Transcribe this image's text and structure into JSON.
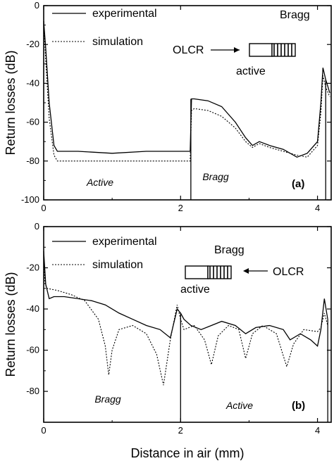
{
  "chart_data": [
    {
      "type": "line",
      "panel_label": "(a)",
      "xlim": [
        0,
        4.2
      ],
      "ylim": [
        -100,
        0
      ],
      "ylabel": "Return losses (dB)",
      "xticks": [
        "0",
        "2",
        "4"
      ],
      "xtick_values": [
        0,
        2,
        4
      ],
      "yticks": [
        "0",
        "-20",
        "-40",
        "-60",
        "-80",
        "-100"
      ],
      "ytick_values": [
        0,
        -20,
        -40,
        -60,
        -80,
        -100
      ],
      "legend": [
        "experimental",
        "simulation"
      ],
      "annotations": {
        "olcr": "OLCR",
        "bragg": "Bragg",
        "active": "active"
      },
      "region_labels": {
        "left": "Active",
        "right": "Bragg"
      },
      "series": [
        {
          "name": "experimental",
          "x": [
            0,
            0.03,
            0.08,
            0.15,
            0.2,
            0.5,
            1.0,
            1.5,
            2.0,
            2.14,
            2.16,
            2.2,
            2.4,
            2.6,
            2.8,
            2.95,
            3.05,
            3.15,
            3.3,
            3.5,
            3.7,
            3.85,
            4.0,
            4.05,
            4.08,
            4.12,
            4.18
          ],
          "y": [
            -8,
            -22,
            -50,
            -72,
            -75,
            -75,
            -76,
            -75,
            -75,
            -75,
            -48,
            -48,
            -49,
            -52,
            -60,
            -68,
            -72,
            -70,
            -72,
            -74,
            -78,
            -76,
            -70,
            -50,
            -32,
            -38,
            -45
          ]
        },
        {
          "name": "simulation",
          "x": [
            0,
            0.03,
            0.08,
            0.15,
            0.2,
            0.5,
            1.0,
            1.5,
            2.0,
            2.14,
            2.16,
            2.2,
            2.4,
            2.6,
            2.8,
            2.95,
            3.05,
            3.15,
            3.3,
            3.5,
            3.7,
            3.85,
            4.0,
            4.05,
            4.08,
            4.12,
            4.18
          ],
          "y": [
            -8,
            -28,
            -58,
            -77,
            -80,
            -80,
            -80,
            -80,
            -80,
            -80,
            -54,
            -53,
            -54,
            -57,
            -63,
            -70,
            -73,
            -71,
            -73,
            -75,
            -77,
            -78,
            -72,
            -55,
            -36,
            -42,
            -47
          ]
        }
      ]
    },
    {
      "type": "line",
      "panel_label": "(b)",
      "xlim": [
        0,
        4.2
      ],
      "ylim": [
        -95,
        0
      ],
      "xlabel": "Distance in air (mm)",
      "ylabel": "Return losses (dB)",
      "xticks": [
        "0",
        "2",
        "4"
      ],
      "xtick_values": [
        0,
        2,
        4
      ],
      "yticks": [
        "0",
        "-20",
        "-40",
        "-60",
        "-80"
      ],
      "ytick_values": [
        0,
        -20,
        -40,
        -60,
        -80
      ],
      "legend": [
        "experimental",
        "simulation"
      ],
      "annotations": {
        "olcr": "OLCR",
        "bragg": "Bragg",
        "active": "active"
      },
      "region_labels": {
        "left": "Bragg",
        "right": "Active"
      },
      "series": [
        {
          "name": "experimental",
          "x": [
            0,
            0.03,
            0.08,
            0.15,
            0.3,
            0.5,
            0.7,
            0.9,
            1.1,
            1.3,
            1.5,
            1.7,
            1.85,
            1.95,
            2.0,
            2.05,
            2.15,
            2.3,
            2.45,
            2.6,
            2.8,
            2.95,
            3.1,
            3.3,
            3.5,
            3.6,
            3.75,
            3.9,
            4.0,
            4.05,
            4.1,
            4.15
          ],
          "y": [
            -12,
            -28,
            -35,
            -34,
            -34,
            -35,
            -36,
            -38,
            -42,
            -45,
            -48,
            -50,
            -54,
            -40,
            -42,
            -45,
            -48,
            -50,
            -48,
            -46,
            -48,
            -52,
            -49,
            -48,
            -50,
            -55,
            -52,
            -55,
            -58,
            -50,
            -35,
            -45
          ]
        },
        {
          "name": "simulation",
          "x": [
            0,
            0.02,
            0.05,
            0.2,
            0.4,
            0.6,
            0.8,
            0.9,
            0.95,
            1.0,
            1.1,
            1.3,
            1.5,
            1.65,
            1.75,
            1.85,
            1.95,
            2.0,
            2.05,
            2.2,
            2.35,
            2.45,
            2.55,
            2.7,
            2.85,
            2.95,
            3.05,
            3.2,
            3.4,
            3.55,
            3.65,
            3.8,
            4.0,
            4.05,
            4.1,
            4.15
          ],
          "y": [
            -15,
            -28,
            -30,
            -31,
            -33,
            -36,
            -45,
            -58,
            -72,
            -60,
            -50,
            -48,
            -52,
            -62,
            -77,
            -55,
            -38,
            -45,
            -50,
            -48,
            -55,
            -67,
            -53,
            -48,
            -50,
            -64,
            -52,
            -48,
            -52,
            -68,
            -57,
            -50,
            -51,
            -49,
            -42,
            -48
          ]
        }
      ]
    }
  ]
}
